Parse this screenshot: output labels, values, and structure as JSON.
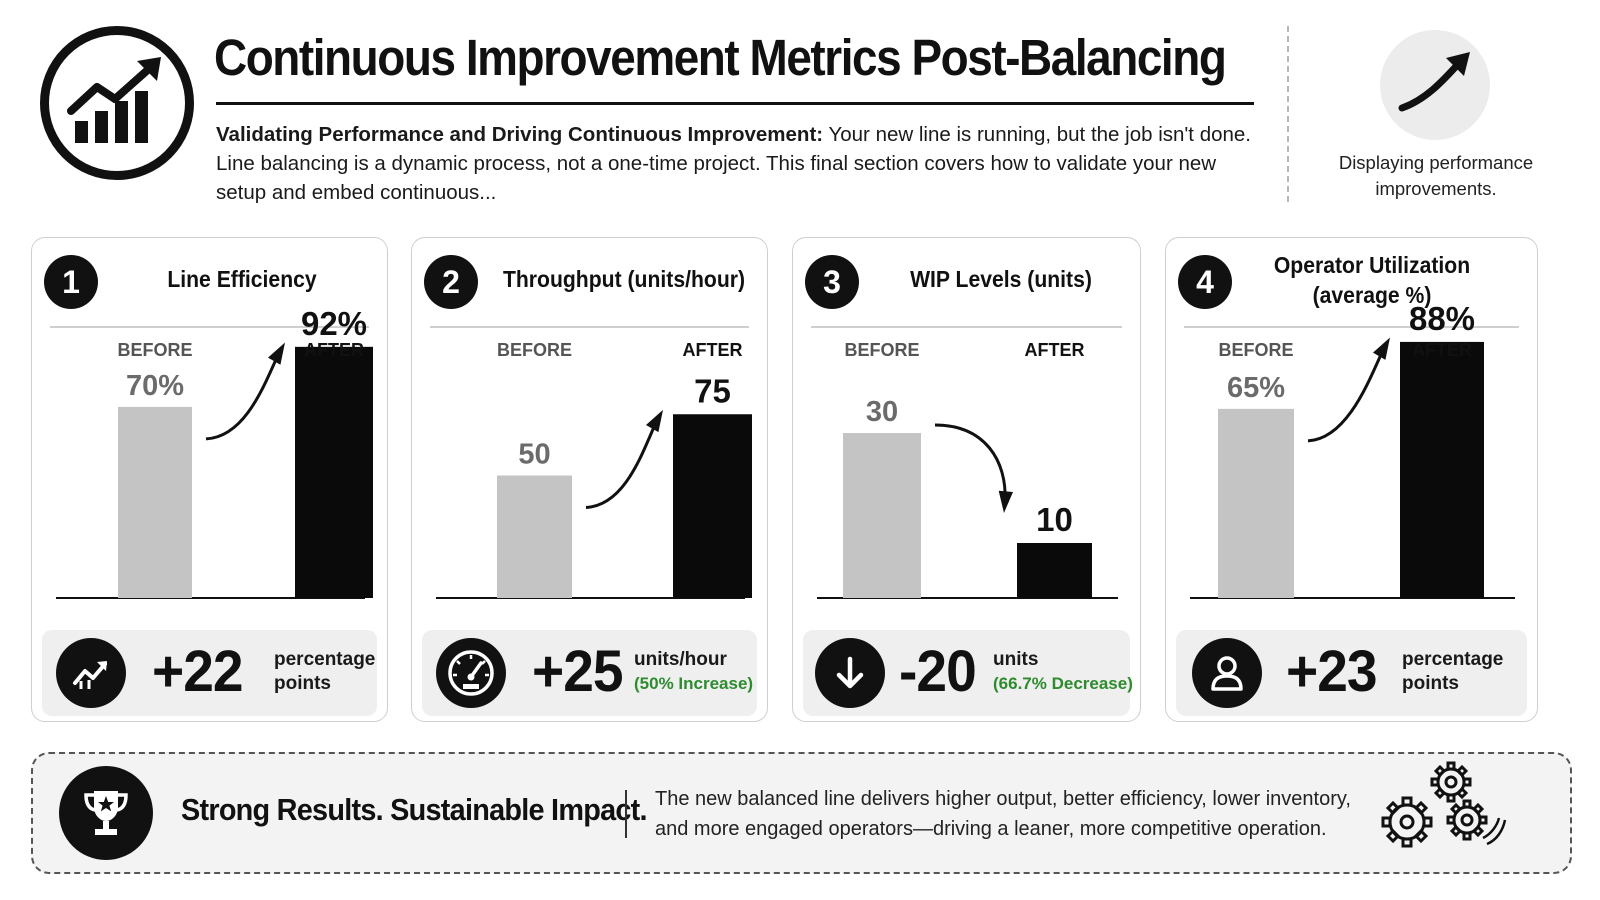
{
  "header": {
    "title": "Continuous Improvement Metrics Post-Balancing",
    "intro_bold": "Validating Performance and Driving Continuous Improvement:",
    "intro_text": " Your new line is running, but the job isn't done. Line balancing is a dynamic process, not a one-time project. This final section covers how to validate your new setup and embed continuous...",
    "logo_icon": "growth-chart-icon",
    "side_icon": "trend-up-arrow-icon",
    "side_caption": "Displaying performance improvements."
  },
  "labels": {
    "before": "BEFORE",
    "after": "AFTER"
  },
  "colors": {
    "before_bar": "#c4c4c4",
    "after_bar": "#0a0a0a",
    "positive": "#2e8b2e",
    "panel": "#efefef"
  },
  "cards": [
    {
      "number": "1",
      "title": "Line Efficiency",
      "summary_value": "+22",
      "summary_unit": "percentage points",
      "summary_sub": "",
      "summary_icon": "trending-up-icon"
    },
    {
      "number": "2",
      "title": "Throughput (units/hour)",
      "summary_value": "+25",
      "summary_unit": "units/hour",
      "summary_sub": "(50% Increase)",
      "summary_icon": "speedometer-icon"
    },
    {
      "number": "3",
      "title": "WIP Levels (units)",
      "summary_value": "-20",
      "summary_unit": "units",
      "summary_sub": "(66.7% Decrease)",
      "summary_icon": "arrow-down-icon"
    },
    {
      "number": "4",
      "title": "Operator Utilization (average %)",
      "summary_value": "+23",
      "summary_unit": "percentage points",
      "summary_sub": "",
      "summary_icon": "user-icon"
    }
  ],
  "chart_data": [
    {
      "type": "bar",
      "title": "Line Efficiency",
      "categories": [
        "BEFORE",
        "AFTER"
      ],
      "values": [
        70,
        92
      ],
      "value_labels": [
        "70%",
        "92%"
      ],
      "trend": "up",
      "grid": false
    },
    {
      "type": "bar",
      "title": "Throughput (units/hour)",
      "categories": [
        "BEFORE",
        "AFTER"
      ],
      "values": [
        50,
        75
      ],
      "value_labels": [
        "50",
        "75"
      ],
      "trend": "up",
      "grid": false
    },
    {
      "type": "bar",
      "title": "WIP Levels (units)",
      "categories": [
        "BEFORE",
        "AFTER"
      ],
      "values": [
        30,
        10
      ],
      "value_labels": [
        "30",
        "10"
      ],
      "trend": "down",
      "grid": false
    },
    {
      "type": "bar",
      "title": "Operator Utilization (average %)",
      "categories": [
        "BEFORE",
        "AFTER"
      ],
      "values": [
        65,
        88
      ],
      "value_labels": [
        "65%",
        "88%"
      ],
      "trend": "up",
      "grid": false
    }
  ],
  "banner": {
    "icon": "trophy-icon",
    "headline": "Strong Results. Sustainable Impact.",
    "text": "The new balanced line delivers higher output, better efficiency, lower inventory, and more engaged operators—driving a leaner, more competitive operation.",
    "decor_icon": "gears-icon"
  }
}
